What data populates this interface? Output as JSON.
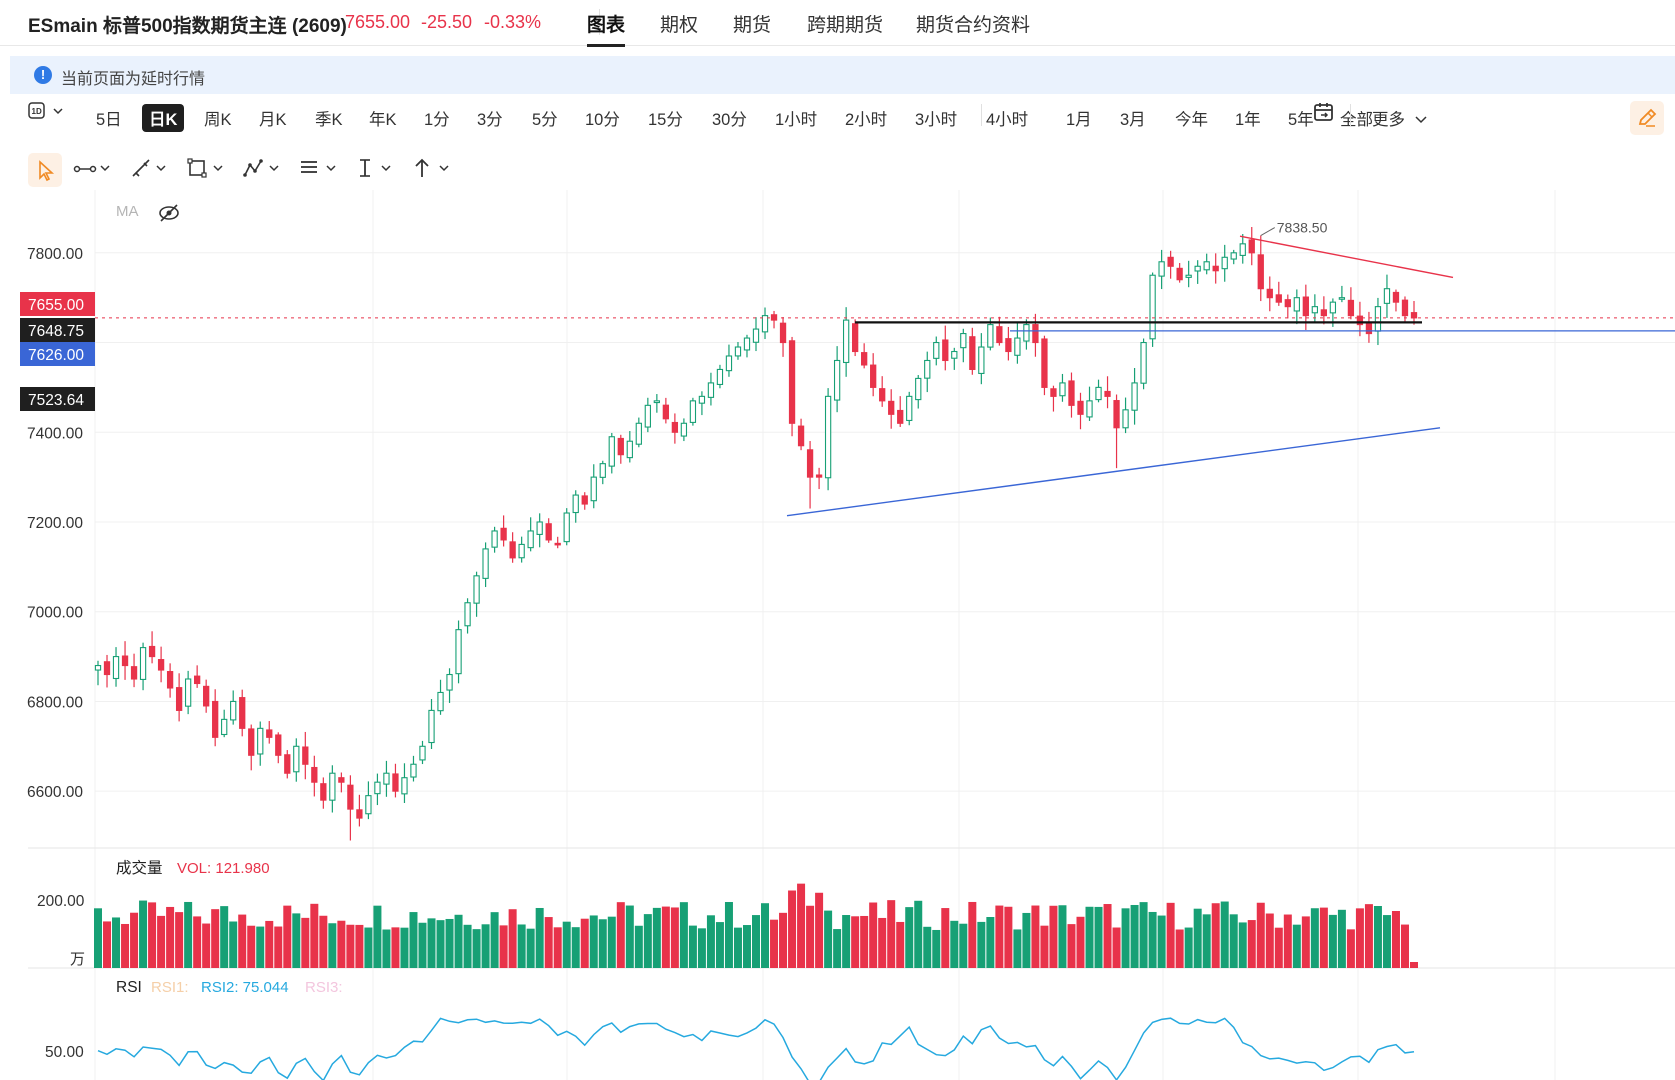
{
  "header": {
    "title": "ESmain 标普500指数期货主连 (2609)",
    "last_price": "7655.00",
    "change": "-25.50",
    "change_pct": "-0.33%",
    "tabs": [
      {
        "label": "图表",
        "active": true
      },
      {
        "label": "期权",
        "active": false
      },
      {
        "label": "期货",
        "active": false
      },
      {
        "label": "跨期期货",
        "active": false
      },
      {
        "label": "期货合约资料",
        "active": false
      }
    ]
  },
  "notice": {
    "text": "当前页面为延时行情",
    "icon": "info-icon"
  },
  "toolbar": {
    "interval_select_label": "1D",
    "periods": [
      "5日",
      "日K",
      "周K",
      "月K",
      "季K",
      "年K",
      "1分",
      "3分",
      "5分",
      "10分",
      "15分",
      "30分",
      "1小时",
      "2小时",
      "3小时",
      "4小时"
    ],
    "active_period": "日K",
    "ranges": [
      "1月",
      "3月",
      "今年",
      "1年",
      "5年",
      "全部"
    ],
    "more_label": "更多",
    "icons": [
      "interval-select-icon",
      "chevron-down-icon",
      "date-range-icon",
      "pencil-icon"
    ]
  },
  "drawing_tools": [
    "cursor-icon",
    "trend-line-icon",
    "pen-icon",
    "rectangle-icon",
    "pattern-icon",
    "text-note-icon",
    "text-cursor-icon",
    "arrow-icon"
  ],
  "colors": {
    "up": "#17a075",
    "down": "#e8334a",
    "trendline_blue": "#3a66d6",
    "trendline_red": "#e8334a",
    "accent": "#f08a24",
    "rsi": "#26a9df"
  },
  "chart_data": {
    "type": "candlestick",
    "indicator_label": "MA",
    "y_axis_ticks": [
      "7800.00",
      "7600.00",
      "7400.00",
      "7200.00",
      "7000.00",
      "6800.00",
      "6600.00"
    ],
    "ylim": [
      6480,
      7940
    ],
    "price_tags": [
      {
        "label": "7655.00",
        "color": "#e8334a",
        "value": 7655
      },
      {
        "label": "7648.75",
        "color": "#1f1f1f",
        "value": 7648.75
      },
      {
        "label": "7626.00",
        "color": "#3a66d6",
        "value": 7626
      },
      {
        "label": "7523.64",
        "color": "#1f1f1f",
        "value": 7523.64
      }
    ],
    "peak_label": "7838.50",
    "closes": [
      6880,
      6860,
      6900,
      6880,
      6850,
      6920,
      6900,
      6870,
      6830,
      6780,
      6850,
      6840,
      6790,
      6720,
      6760,
      6800,
      6740,
      6680,
      6740,
      6720,
      6680,
      6640,
      6700,
      6660,
      6620,
      6580,
      6640,
      6620,
      6560,
      6540,
      6590,
      6620,
      6640,
      6600,
      6630,
      6660,
      6700,
      6780,
      6820,
      6860,
      6960,
      7020,
      7080,
      7140,
      7180,
      7160,
      7120,
      7150,
      7180,
      7200,
      7160,
      7150,
      7220,
      7260,
      7240,
      7300,
      7330,
      7390,
      7350,
      7380,
      7420,
      7460,
      7470,
      7430,
      7400,
      7420,
      7470,
      7480,
      7510,
      7540,
      7570,
      7590,
      7610,
      7630,
      7660,
      7650,
      7600,
      7420,
      7370,
      7300,
      7300,
      7480,
      7560,
      7650,
      7580,
      7550,
      7500,
      7470,
      7440,
      7420,
      7480,
      7520,
      7560,
      7600,
      7560,
      7580,
      7620,
      7540,
      7590,
      7640,
      7600,
      7580,
      7610,
      7640,
      7600,
      7500,
      7480,
      7510,
      7460,
      7440,
      7470,
      7500,
      7480,
      7410,
      7450,
      7510,
      7600,
      7750,
      7780,
      7770,
      7740,
      7750,
      7770,
      7780,
      7760,
      7790,
      7800,
      7820,
      7800,
      7720,
      7700,
      7690,
      7680,
      7700,
      7660,
      7680,
      7660,
      7690,
      7700,
      7660,
      7640,
      7620,
      7680,
      7720,
      7690,
      7660,
      7655
    ],
    "volume": {
      "label": "成交量",
      "value_label": "VOL: 121.980",
      "axis_tick": "200.00",
      "unit": "万"
    },
    "rsi": {
      "label": "RSI",
      "rsi1_label": "RSI1:",
      "rsi2_label": "RSI2: 75.044",
      "rsi3_label": "RSI3:",
      "axis_tick": "50.00"
    }
  }
}
